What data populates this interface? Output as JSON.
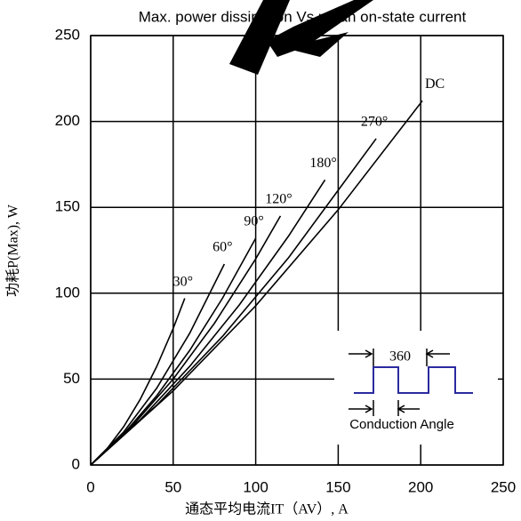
{
  "chart_data": {
    "type": "line",
    "title": "Max. power dissipation Vs.mean on-state current",
    "x_label": "通态平均电流IT（AV）, A",
    "y_label": "功耗P(Max), W",
    "xlim": [
      0,
      250
    ],
    "xticks": [
      0,
      50,
      100,
      150,
      200,
      250
    ],
    "ylim": [
      0,
      250
    ],
    "yticks": [
      0,
      50,
      100,
      150,
      200,
      250
    ],
    "grid": true,
    "series": [
      {
        "name": "30°",
        "color": "#000000",
        "x": [
          0,
          10,
          20,
          30,
          40,
          50,
          57
        ],
        "values": [
          0,
          9.6,
          22.3,
          38.2,
          57.3,
          79.5,
          97
        ]
      },
      {
        "name": "60°",
        "color": "#000000",
        "x": [
          0,
          20,
          40,
          60,
          81
        ],
        "values": [
          0,
          19.2,
          44.7,
          76.7,
          117
        ]
      },
      {
        "name": "90°",
        "color": "#000000",
        "x": [
          0,
          20,
          40,
          60,
          80,
          100
        ],
        "values": [
          0,
          18.1,
          40.3,
          66.7,
          97.3,
          132
        ]
      },
      {
        "name": "120°",
        "color": "#000000",
        "x": [
          0,
          25,
          50,
          75,
          100,
          115
        ],
        "values": [
          0,
          22.5,
          50,
          82.5,
          120,
          145
        ]
      },
      {
        "name": "180°",
        "color": "#000000",
        "x": [
          0,
          30,
          60,
          90,
          120,
          142
        ],
        "values": [
          0,
          26.3,
          57.4,
          93.1,
          133.4,
          166
        ]
      },
      {
        "name": "270°",
        "color": "#000000",
        "x": [
          0,
          40,
          80,
          120,
          173
        ],
        "values": [
          0,
          34.8,
          75,
          120.8,
          190
        ]
      },
      {
        "name": "DC",
        "color": "#000000",
        "x": [
          0,
          50,
          100,
          150,
          201
        ],
        "values": [
          0,
          43.2,
          92.7,
          148.6,
          212
        ]
      }
    ],
    "annotations": [
      "360",
      "Conduction Angle"
    ]
  }
}
